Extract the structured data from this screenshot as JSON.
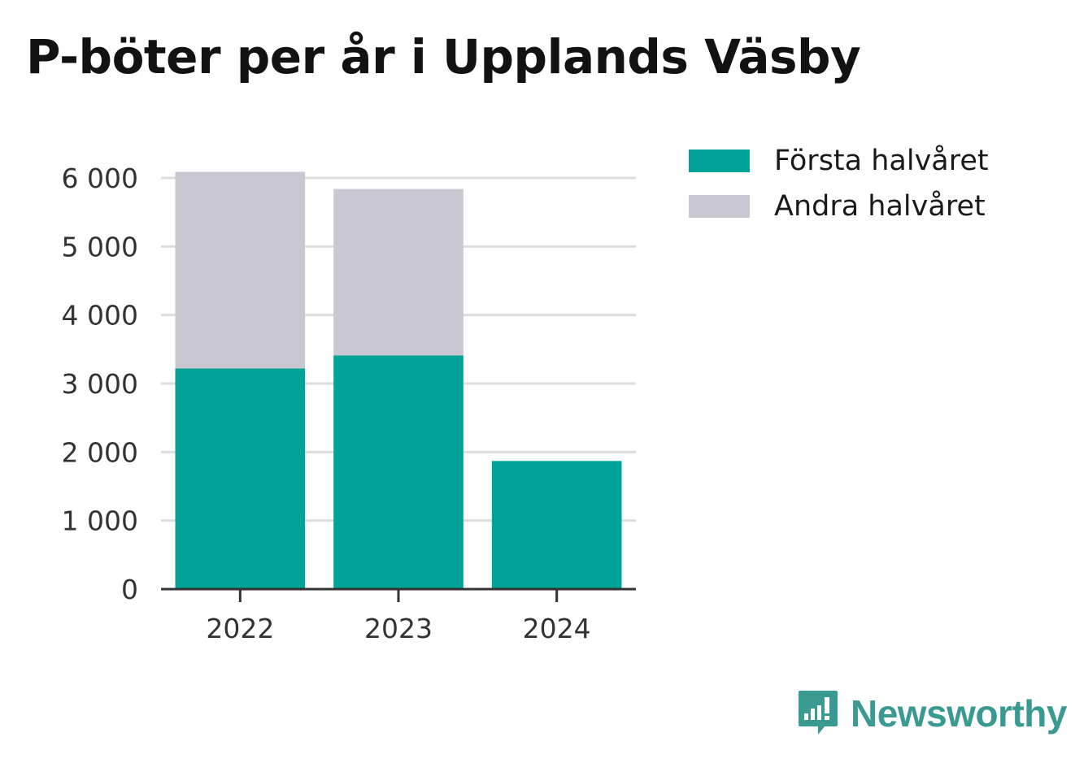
{
  "chart_data": {
    "type": "bar",
    "stacked": true,
    "title": "P-böter per år i Upplands Väsby",
    "categories": [
      "2022",
      "2023",
      "2024"
    ],
    "series": [
      {
        "name": "Första halvåret",
        "color": "#00a398",
        "values": [
          3220,
          3410,
          1870
        ]
      },
      {
        "name": "Andra halvåret",
        "color": "#c8c7d2",
        "values": [
          2870,
          2430,
          0
        ]
      }
    ],
    "ylim": [
      0,
      6000
    ],
    "yticks": [
      0,
      1000,
      2000,
      3000,
      4000,
      5000,
      6000
    ],
    "ytick_labels": [
      "0",
      "1 000",
      "2 000",
      "3 000",
      "4 000",
      "5 000",
      "6 000"
    ],
    "grid": true,
    "legend_position": "top-right"
  },
  "brand": {
    "name": "Newsworthy",
    "icon": "newsworthy-logo-icon",
    "color": "#3a9a92"
  }
}
